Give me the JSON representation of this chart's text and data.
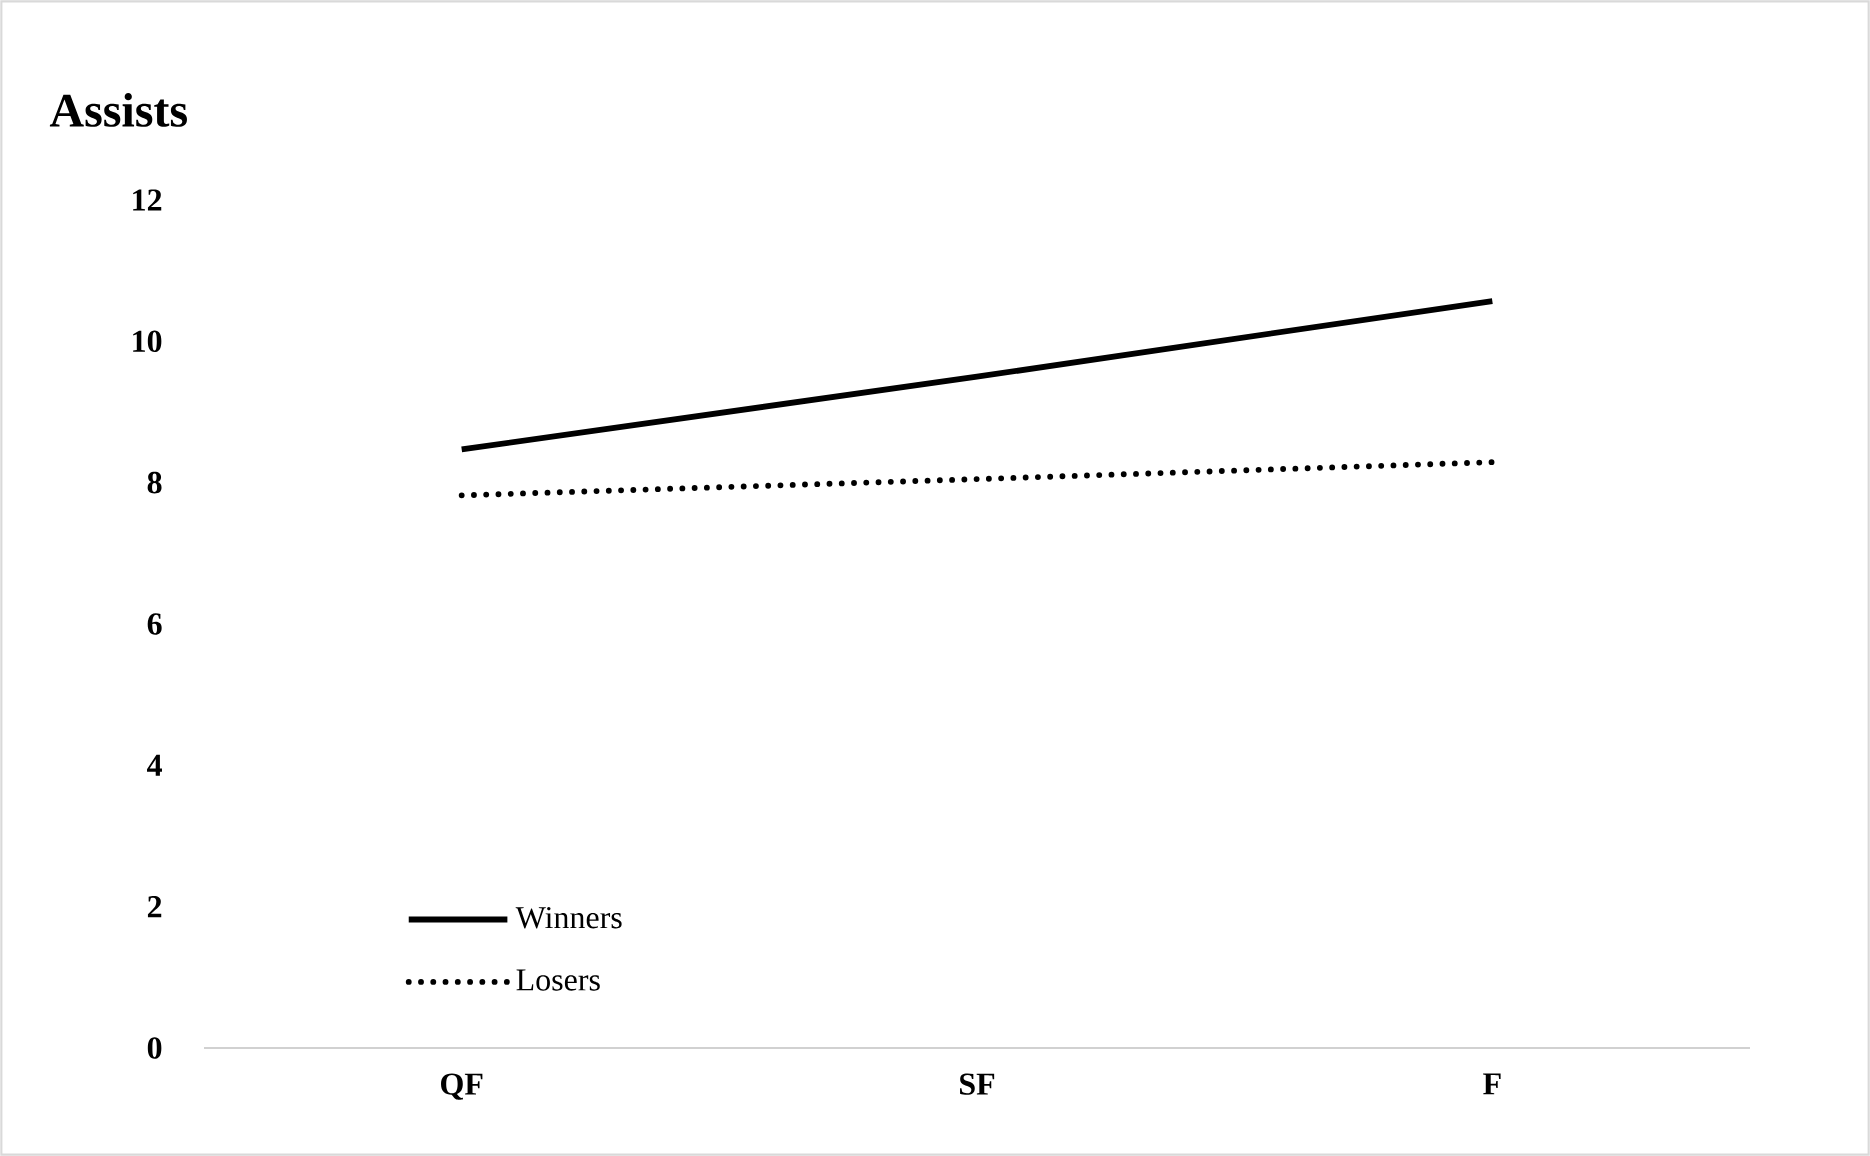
{
  "chart_data": {
    "type": "line",
    "title": "Assists",
    "categories": [
      "QF",
      "SF",
      "F"
    ],
    "series": [
      {
        "name": "Winners",
        "color": "#000000",
        "line_style": "solid",
        "values": [
          8.47,
          9.5,
          10.57
        ]
      },
      {
        "name": "Losers",
        "color": "#000000",
        "line_style": "dotted",
        "values": [
          7.82,
          8.05,
          8.29
        ]
      }
    ],
    "ylim": [
      0,
      12
    ],
    "yticks": [
      0,
      2,
      4,
      6,
      8,
      10,
      12
    ],
    "grid": false,
    "legend": "bottom left",
    "marker": "none"
  }
}
